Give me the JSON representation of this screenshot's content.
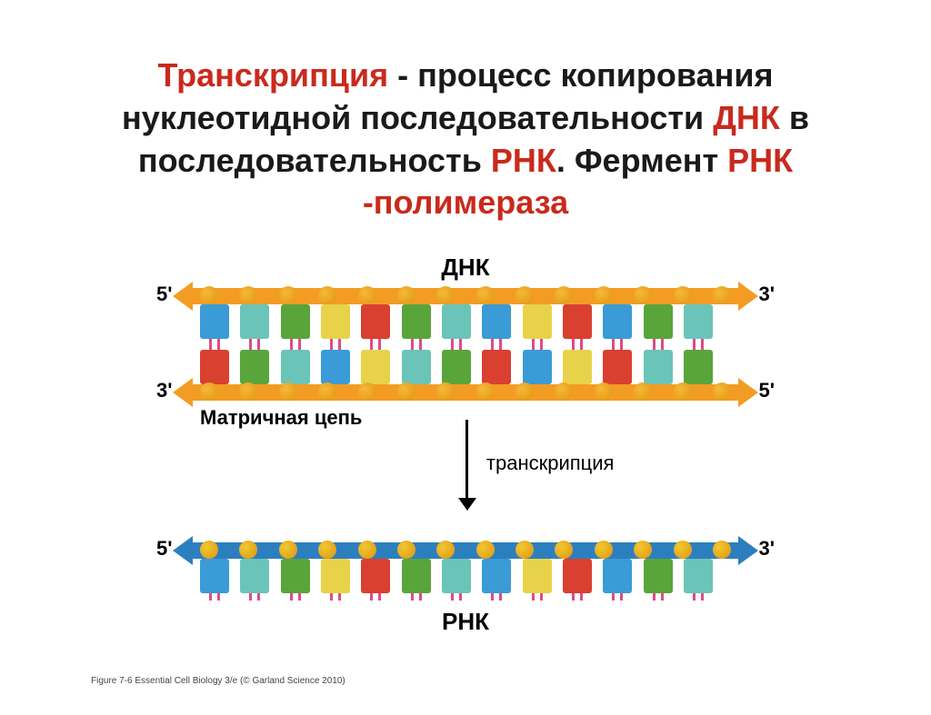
{
  "colors": {
    "red": "#c92a1d",
    "black": "#1a1a1a",
    "orange_rail": "#f39c24",
    "orange_bead": "#f7b838",
    "orange_bead_dark": "#e09410",
    "blue_rail": "#2c7fbf",
    "blue_bead": "#f0c830",
    "base_blue": "#3a9bd6",
    "base_teal": "#6bc4b8",
    "base_green": "#5aa43c",
    "base_yellow": "#e8d24a",
    "base_red": "#d94030",
    "tick_pink": "#e04a8a"
  },
  "title": {
    "t1": "Транскрипция",
    "t2": " - процесс копирования",
    "t3": "нуклеотидной последовательности ",
    "t4": "ДНК",
    "t5": " в",
    "t6": "последовательность ",
    "t7": "РНК",
    "t8": ".    Фермент ",
    "t9": "РНК -полимераза"
  },
  "labels": {
    "dna": "ДНК",
    "rna": "РНК",
    "template": "Матричная цепь",
    "transcription": "транскрипция",
    "end5": "5'",
    "end3": "3'"
  },
  "citation": "Figure 7-6  Essential Cell Biology 3/e (© Garland Science 2010)",
  "top_strand_bases": [
    "blue",
    "teal",
    "green",
    "yellow",
    "red",
    "green",
    "teal",
    "blue",
    "yellow",
    "red",
    "blue",
    "green",
    "teal"
  ],
  "bottom_strand_bases": [
    "red",
    "green",
    "teal",
    "blue",
    "yellow",
    "teal",
    "green",
    "red",
    "blue",
    "yellow",
    "red",
    "teal",
    "green"
  ],
  "rna_bases": [
    "blue",
    "teal",
    "green",
    "yellow",
    "red",
    "green",
    "teal",
    "blue",
    "yellow",
    "red",
    "blue",
    "green",
    "teal"
  ],
  "bead_count": 14
}
